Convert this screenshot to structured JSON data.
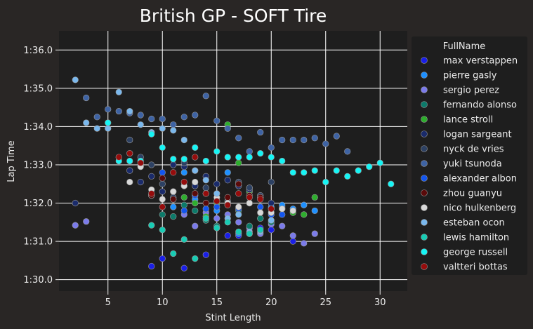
{
  "chart_data": {
    "type": "scatter",
    "title": "British GP - SOFT Tire",
    "xlabel": "Stint Length",
    "ylabel": "Lap Time",
    "xlim": [
      0.5,
      32.5
    ],
    "ylim": [
      89.7,
      96.5
    ],
    "xticks": [
      5,
      10,
      15,
      20,
      25,
      30
    ],
    "yticks": [
      90,
      91,
      92,
      93,
      94,
      95,
      96
    ],
    "ytick_labels": [
      "1:30.0",
      "1:31.0",
      "1:32.0",
      "1:33.0",
      "1:34.0",
      "1:35.0",
      "1:36.0"
    ],
    "grid": true,
    "legend_title": "FullName",
    "legend_position": "right",
    "series": [
      {
        "name": "max verstappen",
        "color": "#1a1fe8",
        "points": [
          [
            9,
            90.35
          ],
          [
            10,
            90.55
          ],
          [
            12,
            90.3
          ],
          [
            14,
            90.65
          ],
          [
            16,
            91.15
          ],
          [
            17,
            91.15
          ],
          [
            18,
            91.2
          ],
          [
            19,
            91.35
          ],
          [
            20,
            91.3
          ],
          [
            21,
            91.9
          ],
          [
            22,
            91.0
          ],
          [
            23,
            91.95
          ]
        ]
      },
      {
        "name": "pierre gasly",
        "color": "#1e90ff",
        "points": [
          [
            11,
            91.9
          ],
          [
            12,
            92.8
          ],
          [
            13,
            92.1
          ],
          [
            15,
            91.8
          ],
          [
            16,
            92.8
          ],
          [
            17,
            91.2
          ],
          [
            18,
            92.4
          ],
          [
            19,
            91.6
          ],
          [
            20,
            91.9
          ],
          [
            21,
            91.95
          ],
          [
            22,
            91.85
          ],
          [
            23,
            91.95
          ],
          [
            24,
            91.8
          ]
        ]
      },
      {
        "name": "sergio perez",
        "color": "#7b7bea",
        "points": [
          [
            2,
            91.42
          ],
          [
            3,
            91.52
          ],
          [
            11,
            92.1
          ],
          [
            12,
            91.7
          ],
          [
            13,
            91.4
          ],
          [
            14,
            91.75
          ],
          [
            15,
            91.6
          ],
          [
            16,
            91.7
          ],
          [
            17,
            91.5
          ],
          [
            18,
            91.35
          ],
          [
            19,
            91.2
          ],
          [
            20,
            91.45
          ],
          [
            21,
            91.4
          ],
          [
            22,
            91.15
          ],
          [
            23,
            90.95
          ],
          [
            24,
            91.2
          ]
        ]
      },
      {
        "name": "fernando alonso",
        "color": "#0c7a6a",
        "points": [
          [
            9,
            92.2
          ],
          [
            10,
            91.7
          ],
          [
            11,
            91.65
          ],
          [
            12,
            91.95
          ],
          [
            13,
            91.8
          ],
          [
            14,
            91.55
          ],
          [
            15,
            91.4
          ],
          [
            16,
            92.0
          ],
          [
            17,
            91.8
          ],
          [
            18,
            91.4
          ],
          [
            19,
            91.6
          ],
          [
            20,
            91.5
          ],
          [
            21,
            91.85
          ]
        ]
      },
      {
        "name": "lance stroll",
        "color": "#2eae2e",
        "points": [
          [
            9,
            92.2
          ],
          [
            12,
            92.15
          ],
          [
            13,
            92.0
          ],
          [
            14,
            91.65
          ],
          [
            15,
            92.0
          ],
          [
            16,
            94.05
          ],
          [
            17,
            93.05
          ],
          [
            18,
            92.3
          ],
          [
            22,
            91.75
          ],
          [
            23,
            91.7
          ],
          [
            24,
            92.15
          ]
        ]
      },
      {
        "name": "logan sargeant",
        "color": "#1a2b6b",
        "points": [
          [
            2,
            92.0
          ],
          [
            7,
            92.85
          ],
          [
            8,
            92.55
          ],
          [
            9,
            92.7
          ],
          [
            10,
            92.3
          ],
          [
            11,
            93.0
          ],
          [
            12,
            92.95
          ],
          [
            13,
            92.45
          ],
          [
            14,
            92.7
          ],
          [
            15,
            92.5
          ],
          [
            16,
            92.6
          ],
          [
            17,
            92.45
          ],
          [
            18,
            92.35
          ],
          [
            19,
            92.15
          ],
          [
            20,
            92.0
          ]
        ]
      },
      {
        "name": "nyck de vries",
        "color": "#2d4163",
        "points": [
          [
            7,
            93.65
          ],
          [
            8,
            93.2
          ],
          [
            9,
            93.0
          ],
          [
            10,
            92.5
          ],
          [
            11,
            92.15
          ],
          [
            12,
            93.05
          ],
          [
            13,
            92.85
          ],
          [
            14,
            92.4
          ],
          [
            15,
            92.05
          ],
          [
            16,
            92.05
          ],
          [
            17,
            92.55
          ],
          [
            18,
            92.4
          ],
          [
            19,
            92.2
          ],
          [
            20,
            92.55
          ]
        ]
      },
      {
        "name": "yuki tsunoda",
        "color": "#3e63a4",
        "points": [
          [
            3,
            94.75
          ],
          [
            4,
            94.25
          ],
          [
            5,
            94.45
          ],
          [
            6,
            94.4
          ],
          [
            7,
            94.35
          ],
          [
            8,
            94.3
          ],
          [
            9,
            94.2
          ],
          [
            10,
            94.2
          ],
          [
            11,
            94.05
          ],
          [
            12,
            94.25
          ],
          [
            13,
            94.3
          ],
          [
            14,
            94.8
          ],
          [
            15,
            94.15
          ],
          [
            16,
            93.95
          ],
          [
            17,
            93.7
          ],
          [
            18,
            93.35
          ],
          [
            19,
            93.85
          ],
          [
            20,
            93.45
          ],
          [
            21,
            93.65
          ],
          [
            22,
            93.65
          ],
          [
            23,
            93.65
          ],
          [
            24,
            93.7
          ],
          [
            25,
            93.55
          ],
          [
            26,
            93.75
          ],
          [
            27,
            93.35
          ]
        ]
      },
      {
        "name": "alexander albon",
        "color": "#1356ef",
        "points": [
          [
            10,
            92.8
          ],
          [
            11,
            92.3
          ],
          [
            12,
            91.8
          ],
          [
            13,
            92.2
          ],
          [
            14,
            91.85
          ],
          [
            15,
            91.9
          ],
          [
            16,
            91.95
          ],
          [
            17,
            91.85
          ],
          [
            18,
            92.0
          ],
          [
            19,
            91.9
          ],
          [
            20,
            91.7
          ],
          [
            21,
            91.7
          ]
        ]
      },
      {
        "name": "zhou guanyu",
        "color": "#5a0a0a",
        "points": [
          [
            9,
            92.2
          ],
          [
            10,
            92.65
          ],
          [
            11,
            92.1
          ],
          [
            12,
            92.45
          ],
          [
            13,
            92.25
          ],
          [
            14,
            92.0
          ],
          [
            15,
            92.05
          ],
          [
            16,
            92.15
          ],
          [
            17,
            92.5
          ],
          [
            18,
            92.2
          ],
          [
            19,
            92.15
          ],
          [
            20,
            91.85
          ]
        ]
      },
      {
        "name": "nico hulkenberg",
        "color": "#d8d8d8",
        "points": [
          [
            7,
            92.55
          ],
          [
            8,
            92.95
          ],
          [
            9,
            92.35
          ],
          [
            10,
            92.1
          ],
          [
            11,
            92.3
          ],
          [
            12,
            92.45
          ],
          [
            13,
            92.55
          ],
          [
            14,
            92.25
          ],
          [
            15,
            92.15
          ],
          [
            16,
            92.0
          ],
          [
            17,
            91.9
          ],
          [
            18,
            92.0
          ],
          [
            19,
            91.75
          ],
          [
            20,
            91.75
          ],
          [
            21,
            91.85
          ],
          [
            22,
            91.8
          ]
        ]
      },
      {
        "name": "esteban ocon",
        "color": "#7ab8ed",
        "points": [
          [
            2,
            95.22
          ],
          [
            3,
            94.1
          ],
          [
            4,
            93.95
          ],
          [
            5,
            93.95
          ],
          [
            6,
            94.9
          ],
          [
            7,
            94.4
          ],
          [
            8,
            94.05
          ],
          [
            9,
            93.85
          ],
          [
            10,
            93.95
          ],
          [
            11,
            93.9
          ],
          [
            12,
            93.65
          ],
          [
            13,
            92.85
          ],
          [
            14,
            92.6
          ],
          [
            15,
            92.25
          ],
          [
            16,
            91.6
          ],
          [
            17,
            91.7
          ],
          [
            18,
            91.25
          ],
          [
            19,
            91.25
          ],
          [
            20,
            91.55
          ]
        ]
      },
      {
        "name": "lewis hamilton",
        "color": "#18ccb4",
        "points": [
          [
            9,
            91.42
          ],
          [
            10,
            91.3
          ],
          [
            11,
            90.68
          ],
          [
            12,
            91.05
          ],
          [
            13,
            90.55
          ],
          [
            14,
            91.6
          ],
          [
            15,
            91.35
          ],
          [
            16,
            91.5
          ],
          [
            17,
            91.25
          ],
          [
            18,
            91.2
          ],
          [
            19,
            91.3
          ]
        ]
      },
      {
        "name": "george russell",
        "color": "#16f5f5",
        "points": [
          [
            5,
            94.1
          ],
          [
            6,
            93.1
          ],
          [
            7,
            93.1
          ],
          [
            8,
            93.1
          ],
          [
            9,
            93.8
          ],
          [
            10,
            93.45
          ],
          [
            11,
            93.15
          ],
          [
            12,
            93.15
          ],
          [
            13,
            93.45
          ],
          [
            14,
            93.1
          ],
          [
            15,
            93.35
          ],
          [
            16,
            93.2
          ],
          [
            17,
            93.2
          ],
          [
            18,
            93.2
          ],
          [
            19,
            93.3
          ],
          [
            20,
            93.2
          ],
          [
            21,
            93.1
          ],
          [
            22,
            92.8
          ],
          [
            23,
            92.8
          ],
          [
            24,
            92.85
          ],
          [
            25,
            92.55
          ],
          [
            26,
            92.85
          ],
          [
            27,
            92.7
          ],
          [
            28,
            92.85
          ],
          [
            29,
            92.95
          ],
          [
            30,
            93.05
          ],
          [
            31,
            92.5
          ]
        ]
      },
      {
        "name": "valtteri bottas",
        "color": "#960c0c",
        "points": [
          [
            6,
            93.2
          ],
          [
            7,
            93.3
          ],
          [
            8,
            93.05
          ],
          [
            9,
            92.25
          ],
          [
            10,
            91.9
          ],
          [
            11,
            92.8
          ],
          [
            12,
            92.55
          ],
          [
            13,
            93.2
          ],
          [
            14,
            92.25
          ],
          [
            15,
            92.05
          ],
          [
            16,
            91.95
          ],
          [
            17,
            92.25
          ],
          [
            18,
            92.15
          ],
          [
            19,
            92.1
          ],
          [
            20,
            91.85
          ]
        ]
      }
    ]
  }
}
